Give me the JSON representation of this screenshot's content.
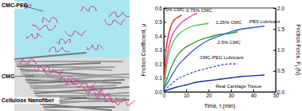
{
  "chart_data": {
    "type": "line",
    "x_label": "Time, t (min)",
    "y_label": "Friction Coefficient, μ",
    "y2_label": "Friction Force, Ff (N)",
    "xlim": [
      0,
      50
    ],
    "xticks": [
      0,
      10,
      20,
      30,
      40,
      50
    ],
    "ylim": [
      0,
      0.6
    ],
    "yticks": [
      {
        "value": 0,
        "label": "0.0"
      },
      0.1,
      0.2,
      0.3,
      0.4,
      0.5,
      0.6
    ],
    "y2lim": [
      0,
      2
    ],
    "y2ticks": [
      {
        "value": 0,
        "label": "0.0"
      },
      0.5,
      {
        "value": 1,
        "label": "1.0"
      },
      1.5,
      {
        "value": 2,
        "label": "2.0"
      }
    ],
    "grid": false,
    "series": [
      {
        "name": "0% CMC",
        "color": "#e8141c",
        "line_style": "solid",
        "x": [
          0,
          0.5,
          1,
          2,
          3,
          4,
          5,
          6,
          7,
          8
        ],
        "values": [
          0.05,
          0.2,
          0.3,
          0.4,
          0.46,
          0.5,
          0.52,
          0.53,
          0.54,
          0.55
        ]
      },
      {
        "name": "0.75% CMC",
        "color": "#e040a8",
        "line_style": "solid",
        "x": [
          0,
          1,
          2,
          3,
          5,
          7,
          9,
          11,
          13,
          15
        ],
        "values": [
          0.05,
          0.2,
          0.3,
          0.37,
          0.44,
          0.48,
          0.51,
          0.53,
          0.55,
          0.56
        ]
      },
      {
        "name": "1.25% CMC",
        "color": "#44c844",
        "line_style": "solid",
        "x": [
          0,
          1,
          2,
          4,
          6,
          8,
          10,
          13,
          16,
          20
        ],
        "values": [
          0.03,
          0.15,
          0.25,
          0.35,
          0.4,
          0.43,
          0.45,
          0.47,
          0.48,
          0.49
        ]
      },
      {
        "name": "2.5% CMC",
        "color": "#1e9a28",
        "line_style": "solid",
        "x": [
          0,
          2,
          4,
          6,
          9,
          12,
          16,
          20,
          25,
          30,
          33
        ],
        "values": [
          0.02,
          0.12,
          0.2,
          0.26,
          0.31,
          0.34,
          0.37,
          0.39,
          0.41,
          0.42,
          0.43
        ]
      },
      {
        "name": "PBS Lubricant",
        "color": "#3050d8",
        "line_style": "solid",
        "x": [
          0,
          3,
          6,
          10,
          15,
          20,
          25,
          30,
          35,
          40,
          45
        ],
        "values": [
          0.02,
          0.1,
          0.18,
          0.25,
          0.32,
          0.37,
          0.4,
          0.43,
          0.45,
          0.46,
          0.47
        ]
      },
      {
        "name": "CMC-PEG Lubricant",
        "color": "#3050d8",
        "line_style": "dashed",
        "x": [
          0,
          3,
          6,
          10,
          15,
          20,
          25,
          30,
          33
        ],
        "values": [
          0.01,
          0.05,
          0.09,
          0.12,
          0.15,
          0.17,
          0.19,
          0.2,
          0.2
        ]
      },
      {
        "name": "Real Cartilage Tissue",
        "color": "#1a2a9a",
        "line_style": "solid",
        "x": [
          0,
          5,
          10,
          15,
          20,
          25,
          30,
          35,
          40,
          45
        ],
        "values": [
          0.005,
          0.03,
          0.05,
          0.07,
          0.08,
          0.09,
          0.1,
          0.11,
          0.115,
          0.12
        ]
      }
    ]
  },
  "diagram": {
    "labels": [
      "CMC-PEG",
      "CMC",
      "Cellulose Nanofiber"
    ]
  }
}
